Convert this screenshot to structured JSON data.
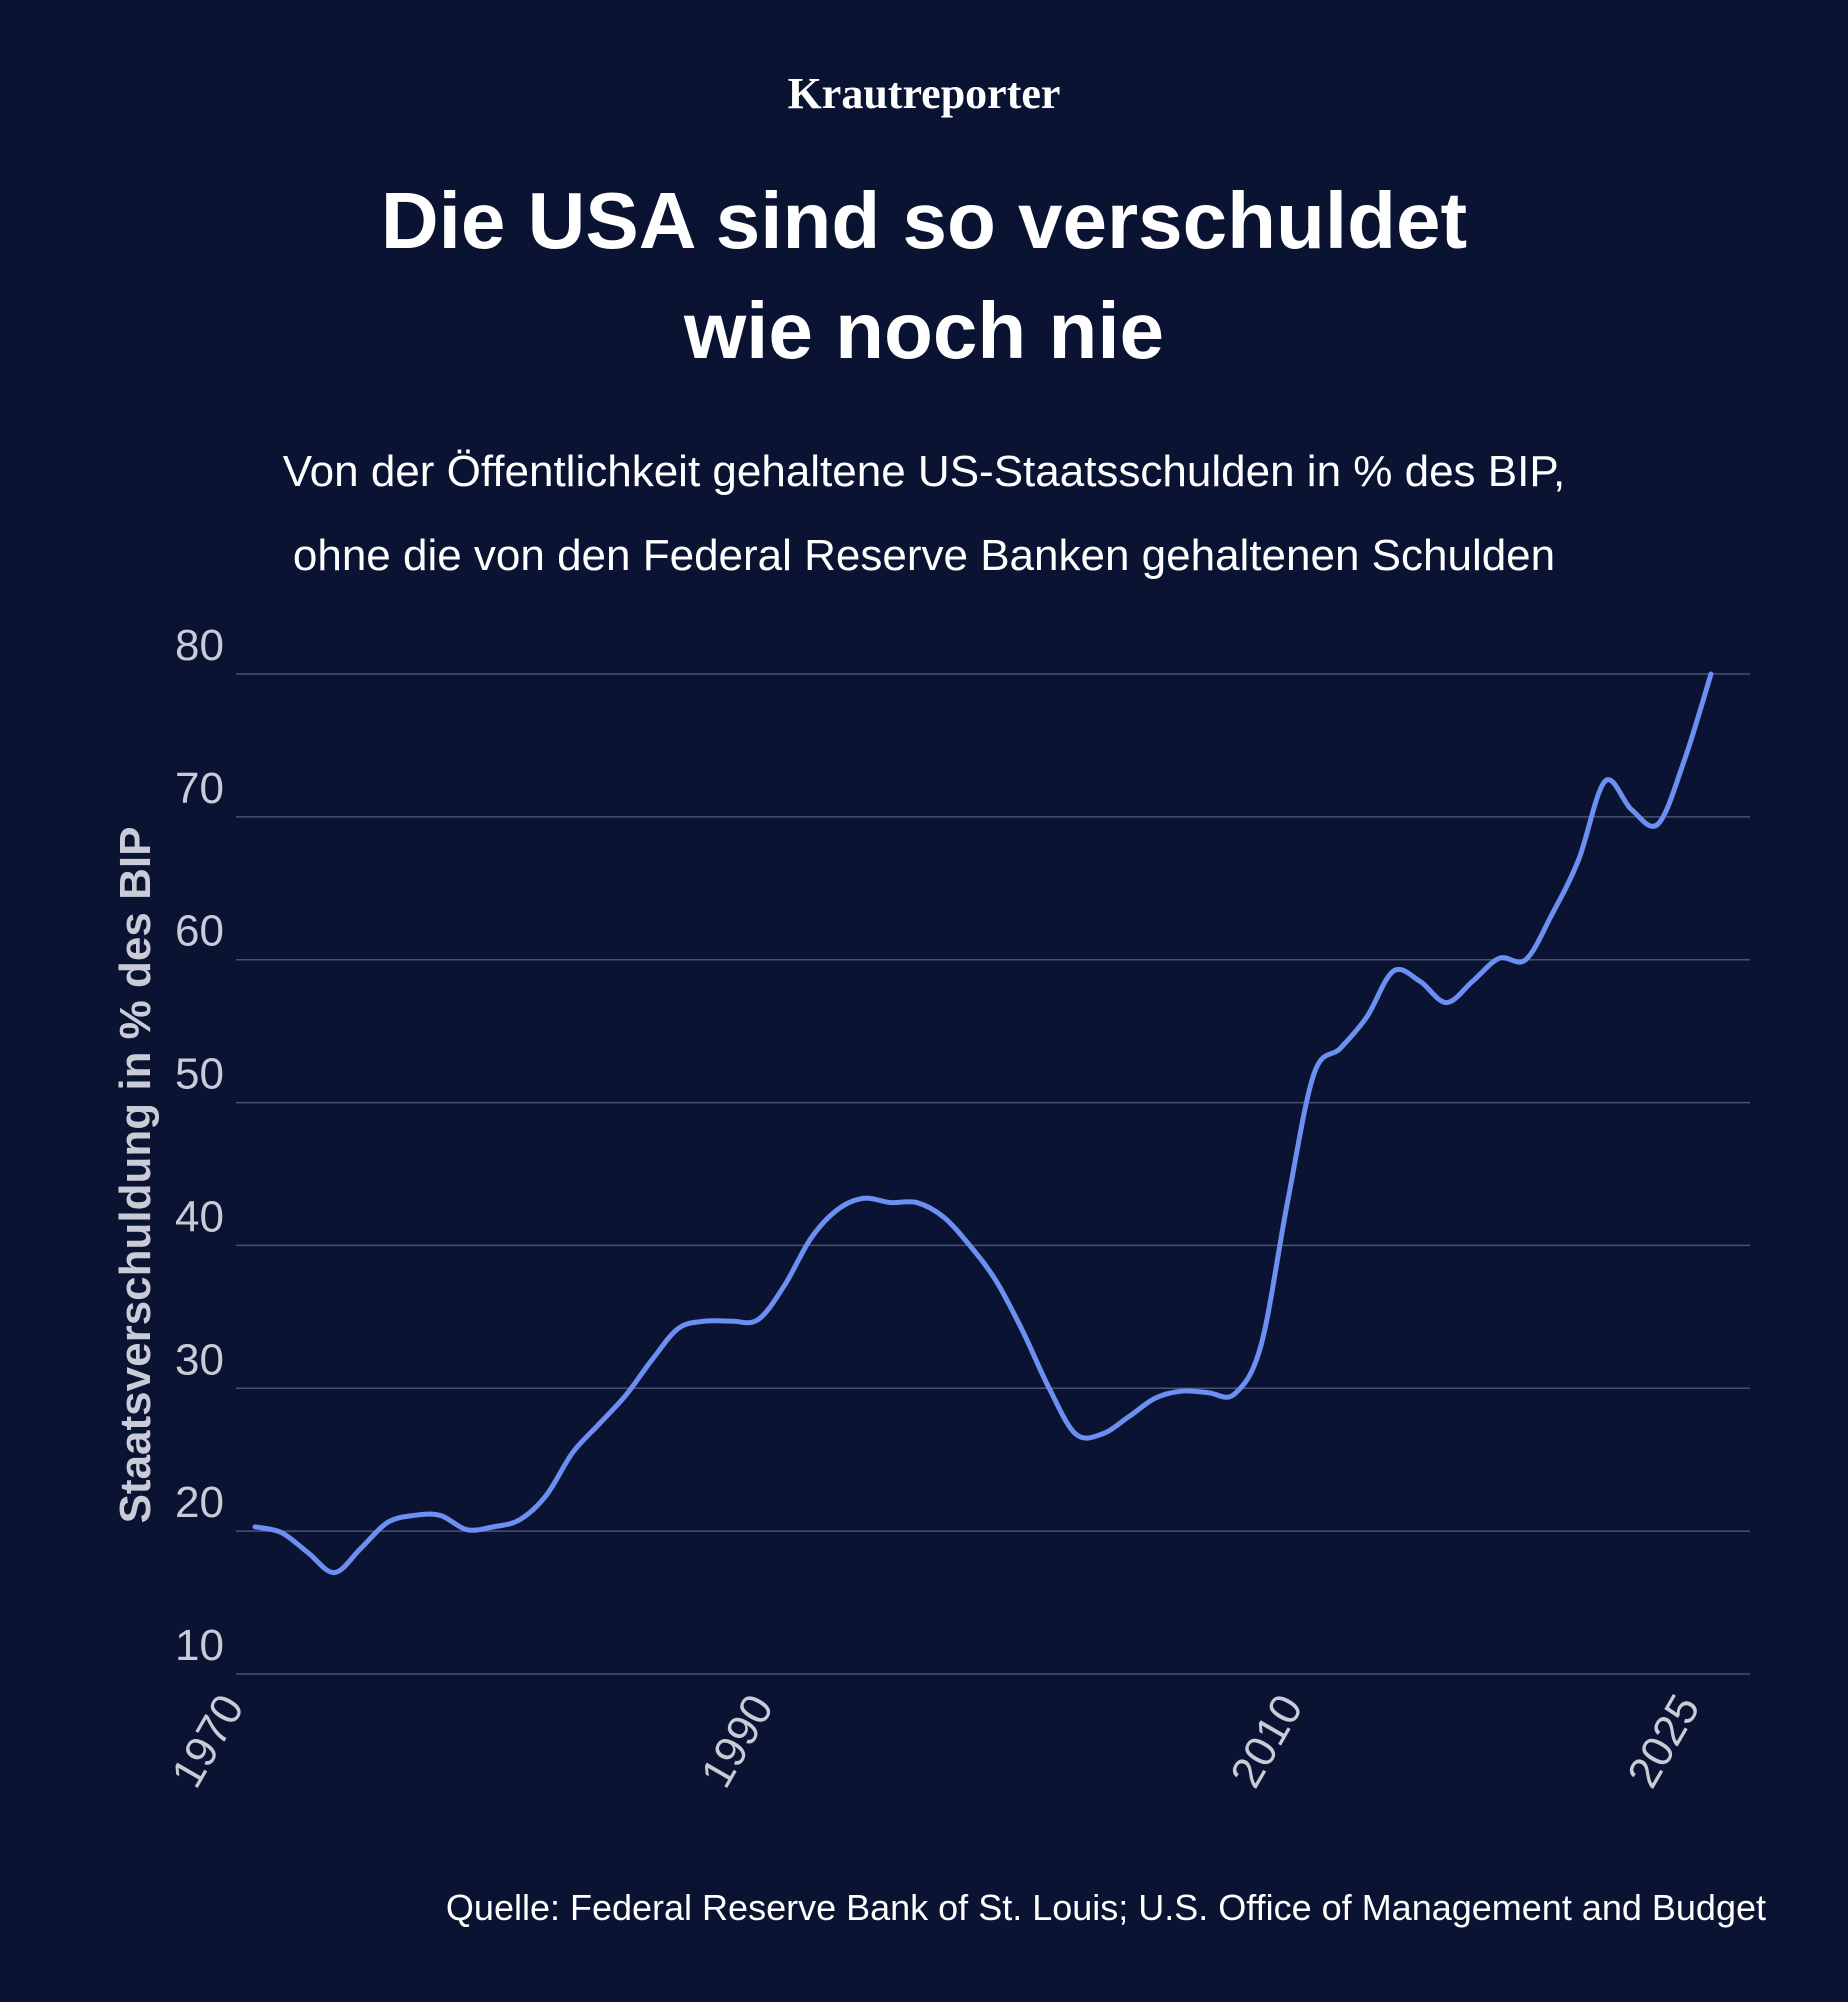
{
  "chart_data": {
    "type": "line",
    "brand": "Krautreporter",
    "title": [
      "Die USA sind so verschuldet",
      "wie noch nie"
    ],
    "subtitle": [
      "Von der Öffentlichkeit gehaltene US-Staatsschulden in % des BIP,",
      "ohne die von den Federal Reserve Banken gehaltenen Schulden"
    ],
    "y_label": "Staatsverschuldung in % des BIP",
    "source": "Quelle: Federal Reserve Bank of St. Louis; U.S. Office of Management and Budget",
    "x": [
      1970,
      1971,
      1972,
      1973,
      1974,
      1975,
      1976,
      1977,
      1978,
      1979,
      1980,
      1981,
      1982,
      1983,
      1984,
      1985,
      1986,
      1987,
      1988,
      1989,
      1990,
      1991,
      1992,
      1993,
      1994,
      1995,
      1996,
      1997,
      1998,
      1999,
      2000,
      2001,
      2002,
      2003,
      2004,
      2005,
      2006,
      2007,
      2008,
      2009,
      2010,
      2011,
      2012,
      2013,
      2014,
      2015,
      2016,
      2017,
      2018,
      2019,
      2020,
      2021,
      2022,
      2023,
      2024,
      2025
    ],
    "series": [
      {
        "name": "Staatsverschuldung",
        "color": "#6b90f2",
        "values": [
          20.3,
          19.9,
          18.5,
          17.1,
          18.8,
          20.6,
          21.1,
          21.1,
          20.1,
          20.3,
          20.8,
          22.5,
          25.5,
          27.5,
          29.5,
          32,
          34.2,
          34.7,
          34.7,
          34.8,
          37.2,
          40.5,
          42.5,
          43.3,
          43,
          43,
          42,
          40,
          37.5,
          34,
          30,
          26.8,
          26.8,
          28,
          29.3,
          29.8,
          29.7,
          29.6,
          33,
          43,
          52,
          53.8,
          56,
          59.2,
          58.5,
          57,
          58.5,
          60.1,
          60,
          63.2,
          67,
          72.5,
          70.5,
          69.5,
          74,
          80
        ]
      }
    ],
    "xlim": [
      1970,
      2025
    ],
    "xticks": [
      1970,
      1990,
      2010,
      2025
    ],
    "ylim": [
      10,
      80
    ],
    "yticks": [
      10,
      20,
      30,
      40,
      50,
      60,
      70,
      80
    ],
    "grid": true
  }
}
